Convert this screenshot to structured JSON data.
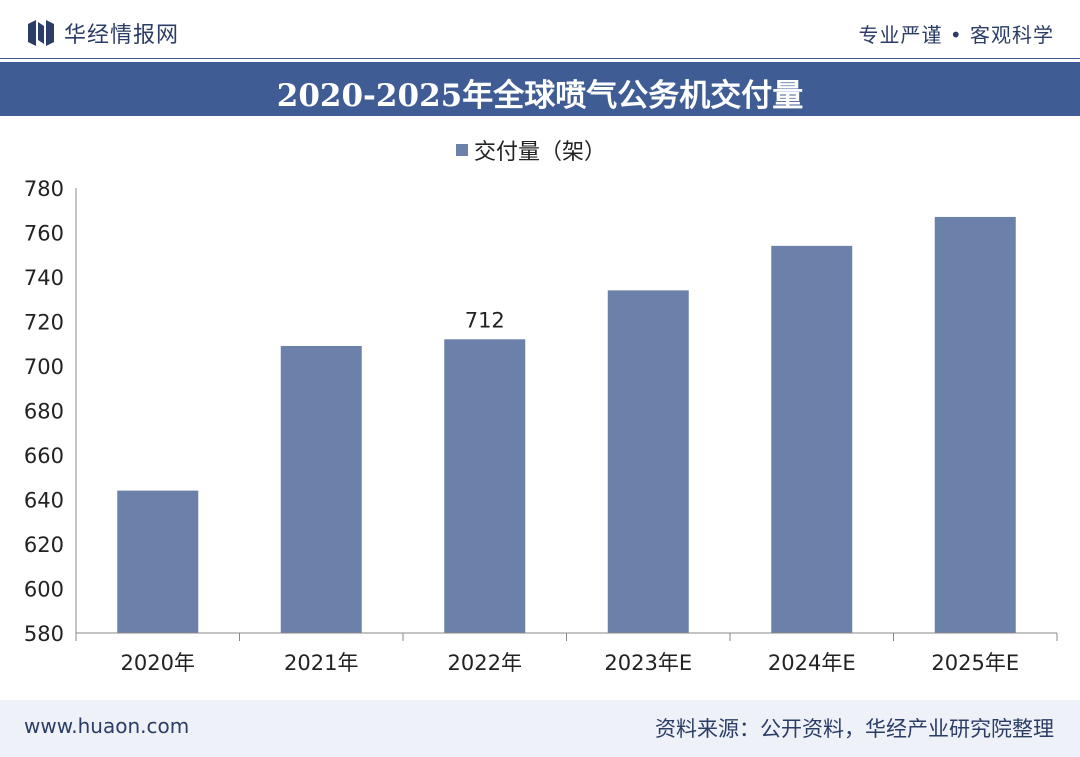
{
  "header": {
    "brand": "华经情报网",
    "slogan": "专业严谨 • 客观科学"
  },
  "colors": {
    "bar": "#6b81aa",
    "title_bar": "#3f5c94",
    "axis_text": "#222222"
  },
  "chart_data": {
    "type": "bar",
    "title": "2020-2025年全球喷气公务机交付量",
    "xlabel": "",
    "ylabel": "",
    "ylim": [
      580,
      780
    ],
    "yticks": [
      780,
      760,
      740,
      720,
      700,
      680,
      660,
      640,
      620,
      600,
      580
    ],
    "categories": [
      "2020年",
      "2021年",
      "2022年",
      "2023年E",
      "2024年E",
      "2025年E"
    ],
    "series": [
      {
        "name": "交付量（架）",
        "values": [
          644,
          709,
          712,
          734,
          754,
          767
        ]
      }
    ],
    "data_labels": [
      {
        "category": "2022年",
        "text": "712"
      }
    ],
    "grid": false,
    "legend": "top-center"
  },
  "footer": {
    "site": "www.huaon.com",
    "source": "资料来源：公开资料，华经产业研究院整理"
  }
}
